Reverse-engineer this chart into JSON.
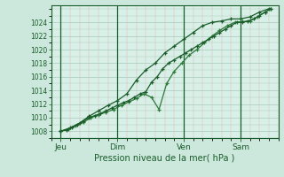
{
  "xlabel": "Pression niveau de la mer( hPa )",
  "background_color": "#cce8dc",
  "plot_bg_color": "#d8f0e8",
  "grid_major_color": "#aacaba",
  "grid_minor_color_v": "#ddb0b0",
  "grid_minor_color_h": "#aacaba",
  "line_color_dark": "#1a5c2a",
  "line_color_mid": "#2d7a3a",
  "tick_label_color": "#1a5c2a",
  "axis_color": "#1a5c2a",
  "ylim": [
    1007.0,
    1026.5
  ],
  "yticks": [
    1008,
    1010,
    1012,
    1014,
    1016,
    1018,
    1020,
    1022,
    1024
  ],
  "xlim": [
    0,
    12.0
  ],
  "day_labels": [
    "Jeu",
    "Dim",
    "Ven",
    "Sam"
  ],
  "day_positions": [
    0.5,
    3.5,
    7.0,
    10.0
  ],
  "vline_positions": [
    0.5,
    3.5,
    7.0,
    10.0
  ],
  "series1_x": [
    0.5,
    0.8,
    1.1,
    1.4,
    1.7,
    2.0,
    2.3,
    2.6,
    2.9,
    3.2,
    3.5,
    3.8,
    4.1,
    4.4,
    4.7,
    5.0,
    5.3,
    5.6,
    5.9,
    6.2,
    6.5,
    6.8,
    7.1,
    7.4,
    7.7,
    8.0,
    8.3,
    8.6,
    8.9,
    9.2,
    9.5,
    9.8,
    10.1,
    10.4,
    10.7,
    11.0,
    11.3,
    11.6
  ],
  "series1_y": [
    1008.0,
    1008.2,
    1008.5,
    1009.0,
    1009.5,
    1010.0,
    1010.3,
    1010.6,
    1011.0,
    1011.4,
    1011.8,
    1012.2,
    1012.5,
    1013.0,
    1013.5,
    1013.8,
    1015.2,
    1016.0,
    1017.2,
    1018.0,
    1018.5,
    1019.0,
    1019.5,
    1020.0,
    1020.5,
    1021.0,
    1021.5,
    1022.0,
    1022.5,
    1023.0,
    1023.5,
    1024.0,
    1024.0,
    1024.2,
    1024.5,
    1025.0,
    1025.5,
    1026.0
  ],
  "series2_x": [
    0.5,
    0.9,
    1.3,
    1.7,
    2.1,
    2.5,
    2.9,
    3.3,
    3.7,
    4.1,
    4.5,
    4.9,
    5.3,
    5.7,
    6.1,
    6.5,
    6.9,
    7.3,
    7.7,
    8.1,
    8.5,
    8.9,
    9.3,
    9.7,
    10.1,
    10.5,
    10.9,
    11.3,
    11.6
  ],
  "series2_y": [
    1008.0,
    1008.3,
    1008.8,
    1009.3,
    1010.0,
    1010.4,
    1010.8,
    1011.2,
    1011.8,
    1012.3,
    1012.8,
    1013.5,
    1013.0,
    1011.2,
    1015.0,
    1016.8,
    1018.0,
    1019.2,
    1020.0,
    1021.0,
    1022.0,
    1022.8,
    1023.5,
    1024.0,
    1024.1,
    1024.2,
    1024.8,
    1025.5,
    1026.0
  ],
  "series3_x": [
    0.5,
    1.0,
    1.5,
    2.0,
    2.5,
    3.0,
    3.5,
    4.0,
    4.5,
    5.0,
    5.5,
    6.0,
    6.5,
    7.0,
    7.5,
    8.0,
    8.5,
    9.0,
    9.5,
    10.0,
    10.5,
    11.0,
    11.5
  ],
  "series3_y": [
    1008.0,
    1008.5,
    1009.2,
    1010.2,
    1011.0,
    1011.8,
    1012.5,
    1013.5,
    1015.5,
    1017.0,
    1018.0,
    1019.5,
    1020.5,
    1021.5,
    1022.5,
    1023.5,
    1024.0,
    1024.2,
    1024.5,
    1024.5,
    1024.8,
    1025.5,
    1026.0
  ]
}
